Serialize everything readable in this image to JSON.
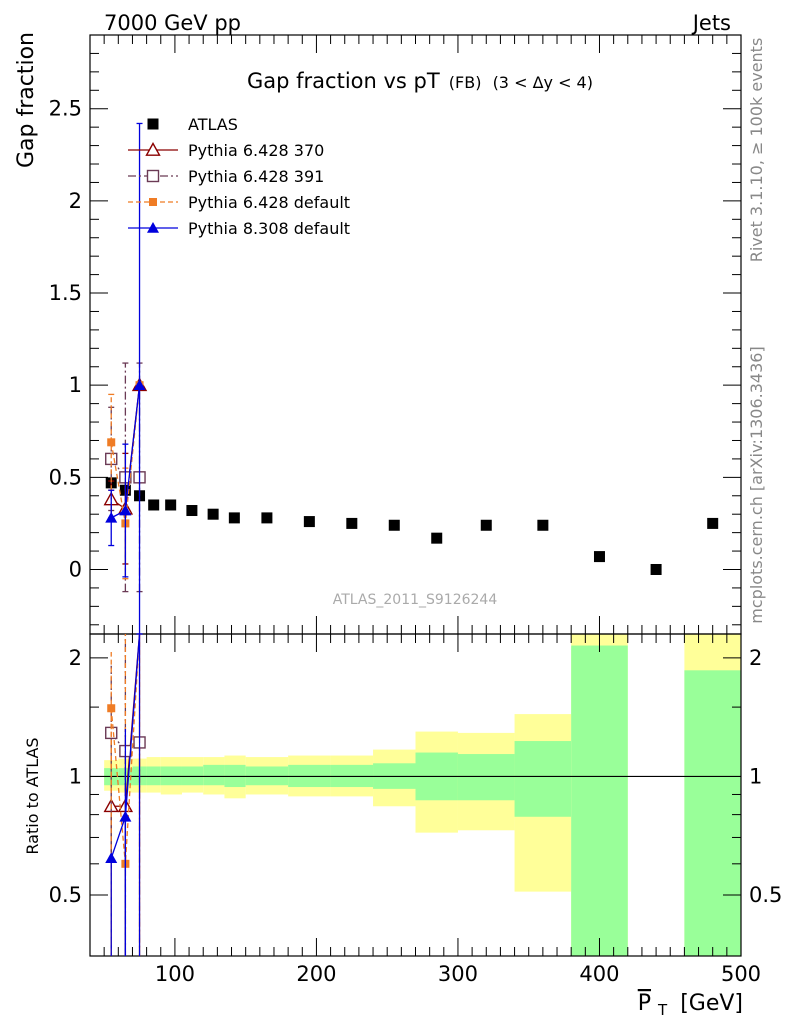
{
  "header": {
    "energy_label": "7000 GeV pp",
    "process_label": "Jets",
    "side_label_top": "Rivet 3.1.10, ≥ 100k events",
    "side_label_bottom": "mcplots.cern.ch [arXiv:1306.3436]",
    "analysis_label": "ATLAS_2011_S9126244"
  },
  "chart_data": [
    {
      "type": "scatter",
      "title": "Gap fraction vs pT",
      "title_suffix": "(FB)",
      "title_range": "(3 < Δy < 4)",
      "ylabel": "Gap fraction",
      "xlim": [
        40,
        500
      ],
      "ylim": [
        -0.35,
        2.9
      ],
      "yticks": [
        0,
        0.5,
        1,
        1.5,
        2,
        2.5
      ],
      "ytick_labels": [
        "0",
        "0.5",
        "1",
        "1.5",
        "2",
        "2.5"
      ],
      "legend_position": "top-left",
      "series": [
        {
          "name": "ATLAS",
          "color": "#000000",
          "marker": "square",
          "x": [
            55,
            65,
            75,
            85,
            97,
            112,
            127,
            142,
            165,
            195,
            225,
            255,
            285,
            320,
            360,
            400,
            440,
            480
          ],
          "y": [
            0.47,
            0.43,
            0.4,
            0.35,
            0.35,
            0.32,
            0.3,
            0.28,
            0.28,
            0.26,
            0.25,
            0.24,
            0.17,
            0.24,
            0.24,
            0.07,
            0.0,
            0.25
          ]
        },
        {
          "name": "Pythia 6.428 370",
          "color": "#8b0000",
          "marker": "open-triangle",
          "x": [
            55,
            65,
            75
          ],
          "y": [
            0.38,
            0.33,
            1.0
          ],
          "err": [
            0.1,
            0.3,
            0.0
          ]
        },
        {
          "name": "Pythia 6.428 391",
          "color": "#6b3a55",
          "marker": "open-square",
          "x": [
            55,
            65,
            75
          ],
          "y": [
            0.6,
            0.5,
            0.5
          ],
          "err": [
            0.28,
            0.62,
            0.62
          ]
        },
        {
          "name": "Pythia 6.428 default",
          "color": "#ef7c25",
          "marker": "filled-square",
          "x": [
            55,
            65,
            75
          ],
          "y": [
            0.69,
            0.25,
            1.0
          ],
          "err": [
            0.26,
            0.3,
            0.0
          ]
        },
        {
          "name": "Pythia 8.308 default",
          "color": "#0000dd",
          "marker": "filled-triangle",
          "x": [
            55,
            65,
            75
          ],
          "y": [
            0.28,
            0.32,
            1.0
          ],
          "err": [
            0.15,
            0.36,
            1.42
          ]
        }
      ]
    },
    {
      "type": "area",
      "ylabel": "Ratio to ATLAS",
      "xlabel": "P_T [GeV]",
      "xlabel_main": "P",
      "xlabel_sub": "T",
      "xlabel_unit": "[GeV]",
      "xlim": [
        40,
        500
      ],
      "ylim": [
        0.35,
        2.3
      ],
      "xticks": [
        100,
        200,
        300,
        400,
        500
      ],
      "xtick_labels": [
        "100",
        "200",
        "300",
        "400",
        "500"
      ],
      "yticks": [
        0.5,
        1,
        2
      ],
      "ytick_labels": [
        "0.5",
        "1",
        "2"
      ],
      "bins": [
        {
          "lo": 50,
          "hi": 60,
          "green": [
            0.95,
            1.05
          ],
          "yellow": [
            0.92,
            1.1
          ]
        },
        {
          "lo": 60,
          "hi": 70,
          "green": [
            0.95,
            1.05
          ],
          "yellow": [
            0.91,
            1.11
          ]
        },
        {
          "lo": 70,
          "hi": 80,
          "green": [
            0.95,
            1.06
          ],
          "yellow": [
            0.91,
            1.11
          ]
        },
        {
          "lo": 80,
          "hi": 90,
          "green": [
            0.95,
            1.06
          ],
          "yellow": [
            0.91,
            1.12
          ]
        },
        {
          "lo": 90,
          "hi": 105,
          "green": [
            0.95,
            1.06
          ],
          "yellow": [
            0.9,
            1.12
          ]
        },
        {
          "lo": 105,
          "hi": 120,
          "green": [
            0.95,
            1.06
          ],
          "yellow": [
            0.91,
            1.12
          ]
        },
        {
          "lo": 120,
          "hi": 135,
          "green": [
            0.95,
            1.07
          ],
          "yellow": [
            0.9,
            1.12
          ]
        },
        {
          "lo": 135,
          "hi": 150,
          "green": [
            0.94,
            1.07
          ],
          "yellow": [
            0.88,
            1.13
          ]
        },
        {
          "lo": 150,
          "hi": 180,
          "green": [
            0.95,
            1.06
          ],
          "yellow": [
            0.9,
            1.12
          ]
        },
        {
          "lo": 180,
          "hi": 210,
          "green": [
            0.94,
            1.07
          ],
          "yellow": [
            0.89,
            1.13
          ]
        },
        {
          "lo": 210,
          "hi": 240,
          "green": [
            0.94,
            1.07
          ],
          "yellow": [
            0.89,
            1.13
          ]
        },
        {
          "lo": 240,
          "hi": 270,
          "green": [
            0.93,
            1.08
          ],
          "yellow": [
            0.84,
            1.17
          ]
        },
        {
          "lo": 270,
          "hi": 300,
          "green": [
            0.87,
            1.15
          ],
          "yellow": [
            0.72,
            1.3
          ]
        },
        {
          "lo": 300,
          "hi": 340,
          "green": [
            0.87,
            1.14
          ],
          "yellow": [
            0.73,
            1.29
          ]
        },
        {
          "lo": 340,
          "hi": 380,
          "green": [
            0.79,
            1.23
          ],
          "yellow": [
            0.51,
            1.44
          ]
        },
        {
          "lo": 380,
          "hi": 420,
          "green": [
            0.35,
            2.15
          ],
          "yellow": [
            0.35,
            2.3
          ]
        },
        {
          "lo": 460,
          "hi": 500,
          "green": [
            0.35,
            1.86
          ],
          "yellow": [
            0.35,
            2.3
          ]
        }
      ],
      "ratio_series": [
        {
          "name": "Pythia 6.428 370",
          "x": [
            55,
            65,
            75
          ],
          "y": [
            0.84,
            0.84,
            2.3
          ],
          "err": [
            0.0,
            0.0,
            0.0
          ]
        },
        {
          "name": "Pythia 6.428 391",
          "x": [
            55,
            65,
            75
          ],
          "y": [
            1.29,
            1.16,
            1.22
          ],
          "err": [
            0.62,
            1.14,
            0.0
          ]
        },
        {
          "name": "Pythia 6.428 default",
          "x": [
            55,
            65,
            75
          ],
          "y": [
            1.49,
            0.6,
            2.3
          ],
          "err": [
            0.58,
            1.7,
            0.0
          ]
        },
        {
          "name": "Pythia 8.308 default",
          "x": [
            55,
            65,
            75
          ],
          "y": [
            0.62,
            0.79,
            2.3
          ],
          "err": [
            0.0,
            0.53,
            0.0
          ]
        }
      ]
    }
  ]
}
